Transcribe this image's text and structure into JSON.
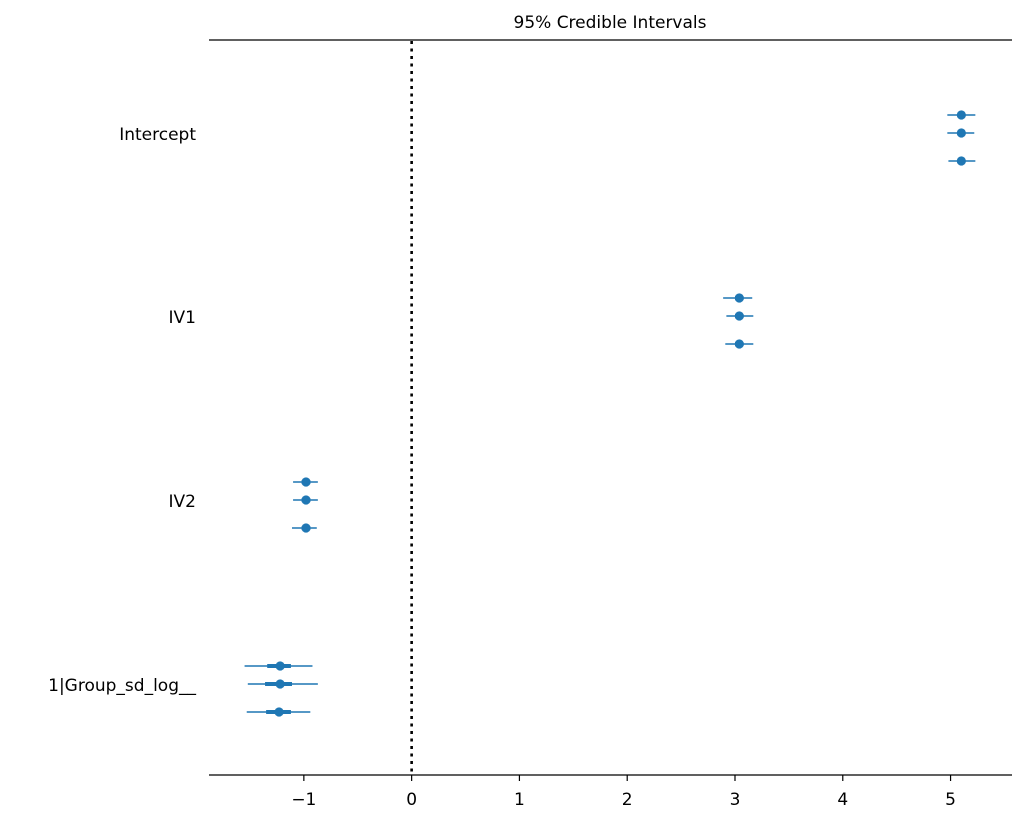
{
  "chart_data": {
    "type": "forest",
    "title": "95% Credible Intervals",
    "xlim": [
      -1.88,
      5.57
    ],
    "xticks": [
      -1,
      0,
      1,
      2,
      3,
      4,
      5
    ],
    "xtick_labels": [
      "−1",
      "0",
      "1",
      "2",
      "3",
      "4",
      "5"
    ],
    "reference_line_x": 0,
    "color": "#1f77b4",
    "grid": false,
    "parameters": [
      {
        "label": "Intercept",
        "chains": [
          {
            "mean": 5.1,
            "hdi_low": 4.97,
            "hdi_high": 5.23,
            "q25": 5.07,
            "q75": 5.13
          },
          {
            "mean": 5.1,
            "hdi_low": 4.97,
            "hdi_high": 5.22,
            "q25": 5.07,
            "q75": 5.13
          },
          {
            "mean": 5.1,
            "hdi_low": 4.98,
            "hdi_high": 5.23,
            "q25": 5.07,
            "q75": 5.13
          }
        ]
      },
      {
        "label": "IV1",
        "chains": [
          {
            "mean": 3.04,
            "hdi_low": 2.89,
            "hdi_high": 3.16,
            "q25": 3.0,
            "q75": 3.08
          },
          {
            "mean": 3.04,
            "hdi_low": 2.92,
            "hdi_high": 3.17,
            "q25": 3.0,
            "q75": 3.08
          },
          {
            "mean": 3.04,
            "hdi_low": 2.91,
            "hdi_high": 3.17,
            "q25": 3.0,
            "q75": 3.08
          }
        ]
      },
      {
        "label": "IV2",
        "chains": [
          {
            "mean": -0.98,
            "hdi_low": -1.1,
            "hdi_high": -0.87,
            "q25": -1.02,
            "q75": -0.94
          },
          {
            "mean": -0.98,
            "hdi_low": -1.1,
            "hdi_high": -0.87,
            "q25": -1.02,
            "q75": -0.94
          },
          {
            "mean": -0.98,
            "hdi_low": -1.11,
            "hdi_high": -0.88,
            "q25": -1.02,
            "q75": -0.94
          }
        ]
      },
      {
        "label": "1|Group_sd_log__",
        "chains": [
          {
            "mean": -1.22,
            "hdi_low": -1.55,
            "hdi_high": -0.92,
            "q25": -1.34,
            "q75": -1.12
          },
          {
            "mean": -1.22,
            "hdi_low": -1.52,
            "hdi_high": -0.87,
            "q25": -1.36,
            "q75": -1.11
          },
          {
            "mean": -1.23,
            "hdi_low": -1.53,
            "hdi_high": -0.94,
            "q25": -1.35,
            "q75": -1.12
          }
        ]
      }
    ]
  }
}
